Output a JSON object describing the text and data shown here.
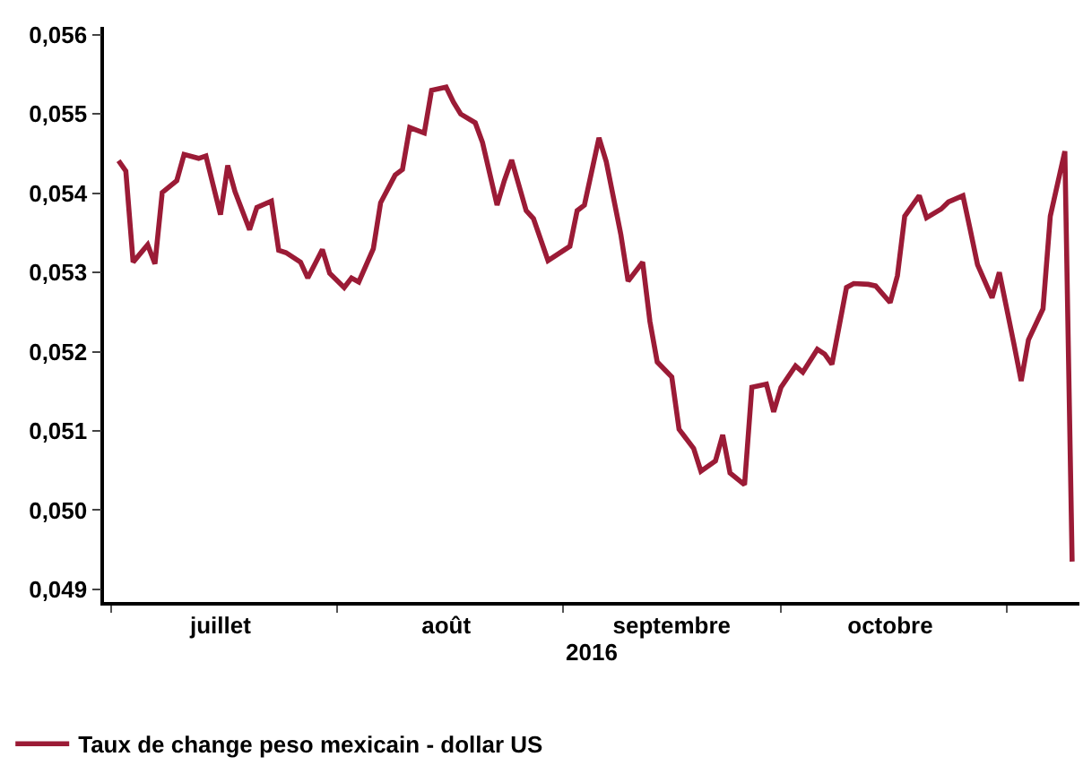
{
  "chart_data": {
    "type": "line",
    "xlabel": "2016",
    "legend": "bottom left",
    "grid": false,
    "marker": "none",
    "line_style": "solid",
    "xlim": [
      "2016-06-30",
      "2016-11-11"
    ],
    "xticks": [
      {
        "value": "2016-07-01",
        "label": null
      },
      {
        "value": "2016-07-16",
        "label": "juillet"
      },
      {
        "value": "2016-08-01",
        "label": null
      },
      {
        "value": "2016-08-16",
        "label": "août"
      },
      {
        "value": "2016-09-01",
        "label": null
      },
      {
        "value": "2016-09-16",
        "label": "septembre"
      },
      {
        "value": "2016-10-01",
        "label": null
      },
      {
        "value": "2016-10-16",
        "label": "octobre"
      },
      {
        "value": "2016-11-01",
        "label": null
      }
    ],
    "ylim": [
      0.04884,
      0.0561
    ],
    "yticks": [
      {
        "value": 0.049,
        "label": "0,049"
      },
      {
        "value": 0.05,
        "label": "0,050"
      },
      {
        "value": 0.051,
        "label": "0,051"
      },
      {
        "value": 0.052,
        "label": "0,052"
      },
      {
        "value": 0.053,
        "label": "0,053"
      },
      {
        "value": 0.054,
        "label": "0,054"
      },
      {
        "value": 0.055,
        "label": "0,055"
      },
      {
        "value": 0.056,
        "label": "0,056"
      }
    ],
    "x": [
      "2016-07-02",
      "2016-07-03",
      "2016-07-04",
      "2016-07-06",
      "2016-07-07",
      "2016-07-08",
      "2016-07-10",
      "2016-07-11",
      "2016-07-13",
      "2016-07-14",
      "2016-07-16",
      "2016-07-17",
      "2016-07-18",
      "2016-07-20",
      "2016-07-21",
      "2016-07-23",
      "2016-07-24",
      "2016-07-25",
      "2016-07-27",
      "2016-07-28",
      "2016-07-30",
      "2016-07-31",
      "2016-08-02",
      "2016-08-03",
      "2016-08-04",
      "2016-08-06",
      "2016-08-07",
      "2016-08-09",
      "2016-08-10",
      "2016-08-11",
      "2016-08-13",
      "2016-08-14",
      "2016-08-16",
      "2016-08-17",
      "2016-08-18",
      "2016-08-20",
      "2016-08-21",
      "2016-08-23",
      "2016-08-24",
      "2016-08-25",
      "2016-08-27",
      "2016-08-28",
      "2016-08-30",
      "2016-09-02",
      "2016-09-03",
      "2016-09-04",
      "2016-09-06",
      "2016-09-07",
      "2016-09-09",
      "2016-09-10",
      "2016-09-12",
      "2016-09-13",
      "2016-09-14",
      "2016-09-16",
      "2016-09-17",
      "2016-09-19",
      "2016-09-20",
      "2016-09-22",
      "2016-09-23",
      "2016-09-24",
      "2016-09-26",
      "2016-09-27",
      "2016-09-29",
      "2016-09-30",
      "2016-10-01",
      "2016-10-03",
      "2016-10-04",
      "2016-10-06",
      "2016-10-07",
      "2016-10-08",
      "2016-10-10",
      "2016-10-11",
      "2016-10-13",
      "2016-10-14",
      "2016-10-16",
      "2016-10-17",
      "2016-10-18",
      "2016-10-20",
      "2016-10-21",
      "2016-10-23",
      "2016-10-24",
      "2016-10-26",
      "2016-10-27",
      "2016-10-28",
      "2016-10-30",
      "2016-10-31",
      "2016-11-02",
      "2016-11-03",
      "2016-11-04",
      "2016-11-06",
      "2016-11-07",
      "2016-11-09",
      "2016-11-10"
    ],
    "series": [
      {
        "name": "Taux de change peso mexicain - dollar US",
        "color": "#9b1b36",
        "values": [
          0.05441,
          0.05428,
          0.05313,
          0.05335,
          0.05311,
          0.05401,
          0.05416,
          0.05449,
          0.05444,
          0.05447,
          0.05373,
          0.05435,
          0.05402,
          0.05354,
          0.05382,
          0.0539,
          0.05328,
          0.05325,
          0.05313,
          0.05293,
          0.05329,
          0.05299,
          0.05281,
          0.05293,
          0.05288,
          0.0533,
          0.05388,
          0.05423,
          0.0543,
          0.05483,
          0.05476,
          0.0553,
          0.05534,
          0.05515,
          0.055,
          0.05489,
          0.05464,
          0.05385,
          0.05416,
          0.05442,
          0.05378,
          0.05368,
          0.05315,
          0.05333,
          0.05378,
          0.05385,
          0.0547,
          0.0544,
          0.05348,
          0.05289,
          0.05313,
          0.05238,
          0.05187,
          0.05168,
          0.05102,
          0.05078,
          0.05049,
          0.05062,
          0.05095,
          0.05047,
          0.05032,
          0.05155,
          0.05159,
          0.05124,
          0.05155,
          0.05182,
          0.05174,
          0.05203,
          0.05197,
          0.05184,
          0.05281,
          0.05286,
          0.05285,
          0.05283,
          0.05262,
          0.05296,
          0.05371,
          0.05397,
          0.05369,
          0.0538,
          0.05389,
          0.05397,
          0.05354,
          0.0531,
          0.05268,
          0.053,
          0.0521,
          0.05163,
          0.05215,
          0.05254,
          0.05371,
          0.05453,
          0.04935
        ]
      }
    ]
  }
}
